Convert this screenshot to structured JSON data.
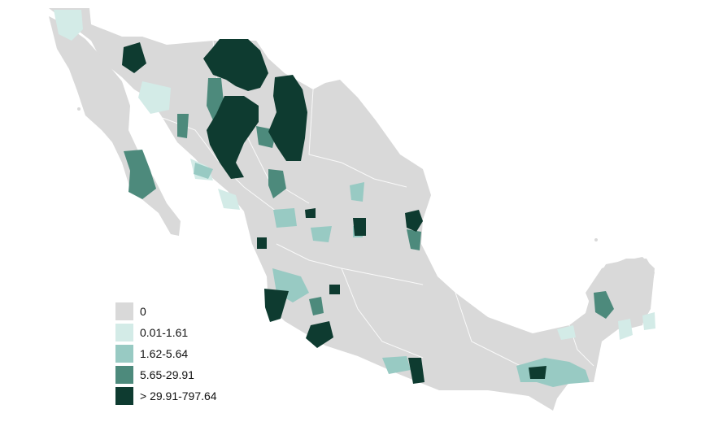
{
  "map": {
    "base_color": "#d9d9d9",
    "border_color": "#ffffff"
  },
  "legend": {
    "items": [
      {
        "label": "0",
        "color": "#d9d9d9"
      },
      {
        "label": "0.01-1.61",
        "color": "#d3ebe7"
      },
      {
        "label": "1.62-5.64",
        "color": "#98cac3"
      },
      {
        "label": "5.65-29.91",
        "color": "#4d8a7c"
      },
      {
        "label": "> 29.91-797.64",
        "color": "#0e3b30"
      }
    ]
  }
}
